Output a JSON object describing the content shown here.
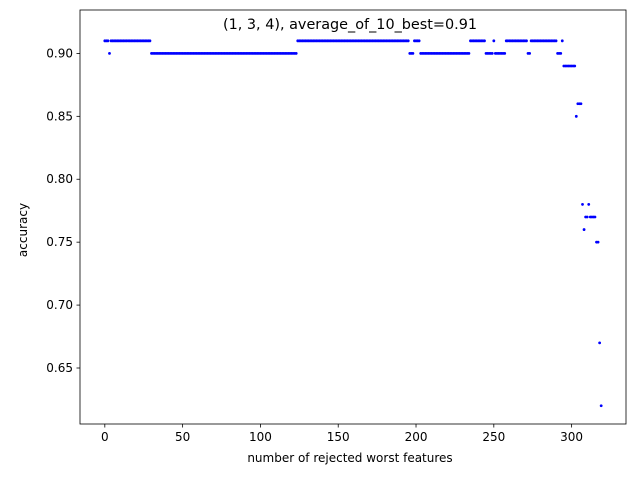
{
  "chart_data": {
    "type": "scatter",
    "title": "(1, 3, 4), average_of_10_best=0.91",
    "xlabel": "number of rejected worst features",
    "ylabel": "accuracy",
    "xlim": [
      -15.95,
      334.95
    ],
    "ylim": [
      0.6055,
      0.9345
    ],
    "xticks": [
      0,
      50,
      100,
      150,
      200,
      250,
      300
    ],
    "yticks": [
      0.65,
      0.7,
      0.75,
      0.8,
      0.85,
      0.9
    ],
    "ytick_labels": [
      "0.65",
      "0.70",
      "0.75",
      "0.80",
      "0.85",
      "0.90"
    ],
    "grid": false,
    "marker_color": "#0000ff",
    "segments": [
      {
        "from": 0,
        "to": 2,
        "y": 0.91
      },
      {
        "from": 3,
        "to": 3,
        "y": 0.9
      },
      {
        "from": 4,
        "to": 29,
        "y": 0.91
      },
      {
        "from": 30,
        "to": 123,
        "y": 0.9
      },
      {
        "from": 124,
        "to": 195,
        "y": 0.91
      },
      {
        "from": 196,
        "to": 198,
        "y": 0.9
      },
      {
        "from": 199,
        "to": 202,
        "y": 0.91
      },
      {
        "from": 203,
        "to": 234,
        "y": 0.9
      },
      {
        "from": 235,
        "to": 244,
        "y": 0.91
      },
      {
        "from": 245,
        "to": 249,
        "y": 0.9
      },
      {
        "from": 250,
        "to": 250,
        "y": 0.91
      },
      {
        "from": 251,
        "to": 257,
        "y": 0.9
      },
      {
        "from": 258,
        "to": 271,
        "y": 0.91
      },
      {
        "from": 272,
        "to": 273,
        "y": 0.9
      },
      {
        "from": 274,
        "to": 290,
        "y": 0.91
      },
      {
        "from": 291,
        "to": 293,
        "y": 0.9
      },
      {
        "from": 294,
        "to": 294,
        "y": 0.91
      },
      {
        "from": 295,
        "to": 302,
        "y": 0.89
      },
      {
        "from": 303,
        "to": 303,
        "y": 0.85
      },
      {
        "from": 304,
        "to": 306,
        "y": 0.86
      },
      {
        "from": 307,
        "to": 307,
        "y": 0.78
      },
      {
        "from": 308,
        "to": 308,
        "y": 0.76
      },
      {
        "from": 309,
        "to": 309,
        "y": 0.77
      },
      {
        "from": 310,
        "to": 310,
        "y": 0.77
      },
      {
        "from": 311,
        "to": 311,
        "y": 0.78
      },
      {
        "from": 312,
        "to": 315,
        "y": 0.77
      },
      {
        "from": 316,
        "to": 317,
        "y": 0.75
      },
      {
        "from": 318,
        "to": 318,
        "y": 0.67
      },
      {
        "from": 319,
        "to": 319,
        "y": 0.62
      }
    ]
  }
}
